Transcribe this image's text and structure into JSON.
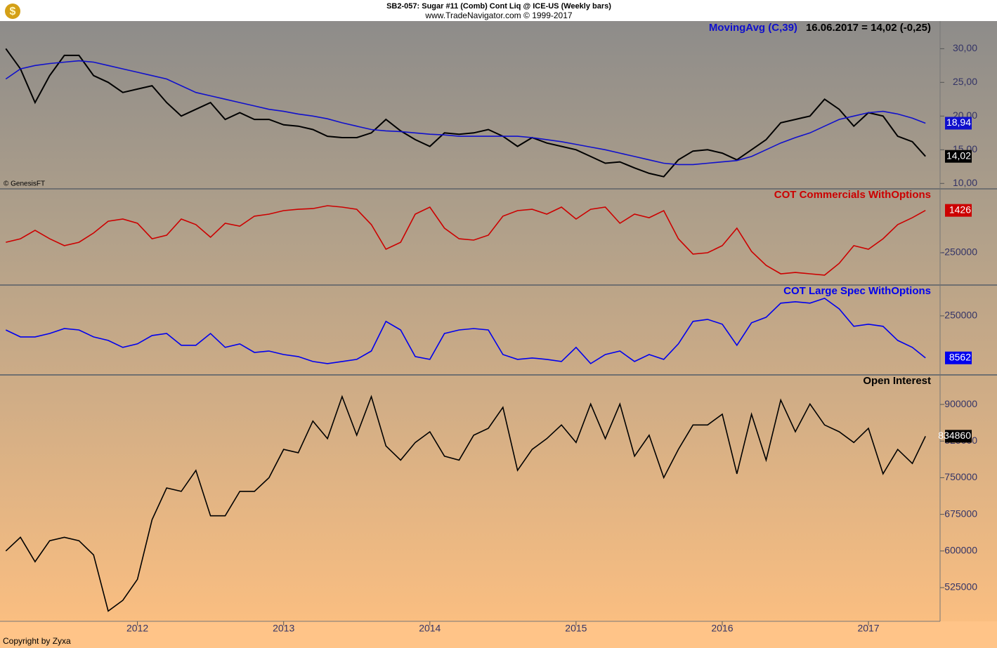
{
  "header": {
    "title": "SB2-057:  Sugar #11 (Comb) Cont Liq @ ICE-US  (Weekly bars)",
    "subtitle": "www.TradeNavigator.com © 1999-2017",
    "source": "© GenesisFT",
    "copyright": "Copyright by Zyxa"
  },
  "x_axis": {
    "xlim": [
      2011.06,
      2017.49
    ],
    "xticks": [
      2012,
      2013,
      2014,
      2015,
      2016,
      2017
    ],
    "x": [
      2011.1,
      2011.2,
      2011.3,
      2011.4,
      2011.5,
      2011.6,
      2011.7,
      2011.8,
      2011.9,
      2012.0,
      2012.1,
      2012.2,
      2012.3,
      2012.4,
      2012.5,
      2012.6,
      2012.7,
      2012.8,
      2012.9,
      2013.0,
      2013.1,
      2013.2,
      2013.3,
      2013.4,
      2013.5,
      2013.6,
      2013.7,
      2013.8,
      2013.9,
      2014.0,
      2014.1,
      2014.2,
      2014.3,
      2014.4,
      2014.5,
      2014.6,
      2014.7,
      2014.8,
      2014.9,
      2015.0,
      2015.1,
      2015.2,
      2015.3,
      2015.4,
      2015.5,
      2015.6,
      2015.7,
      2015.8,
      2015.9,
      2016.0,
      2016.1,
      2016.2,
      2016.3,
      2016.4,
      2016.5,
      2016.6,
      2016.7,
      2016.8,
      2016.9,
      2017.0,
      2017.1,
      2017.2,
      2017.3,
      2017.39
    ]
  },
  "chart_data": [
    {
      "type": "line",
      "info": "16.06.2017 = 14,02 (-0,25)",
      "ylim": [
        9.3,
        34.1
      ],
      "yticks": [
        {
          "value": 30,
          "label": "30,00"
        },
        {
          "value": 25,
          "label": "25,00"
        },
        {
          "value": 20,
          "label": "20,00"
        },
        {
          "value": 15,
          "label": "15,00"
        },
        {
          "value": 10,
          "label": "10,00"
        }
      ],
      "series": [
        {
          "name": null,
          "color": "#000000",
          "values": [
            30,
            27,
            22,
            26,
            29,
            29,
            26,
            25,
            23.5,
            24,
            24.5,
            22,
            20,
            21,
            22,
            19.5,
            20.5,
            19.5,
            19.5,
            18.7,
            18.5,
            18,
            17,
            16.8,
            16.8,
            17.5,
            19.5,
            17.8,
            16.5,
            15.5,
            17.5,
            17.3,
            17.5,
            18,
            17,
            15.5,
            16.8,
            16,
            15.5,
            15,
            14,
            13,
            13.2,
            12.3,
            11.5,
            11,
            13.5,
            14.8,
            15,
            14.5,
            13.5,
            15,
            16.5,
            19,
            19.5,
            20,
            22.5,
            21,
            18.5,
            20.5,
            20,
            17,
            16.2,
            14.02
          ],
          "value_labels": [
            null,
            null,
            null,
            null,
            null,
            null,
            null,
            null,
            null,
            null,
            null,
            null,
            null,
            null,
            null,
            null,
            null,
            null,
            null,
            null,
            null,
            null,
            null,
            null,
            null,
            null,
            null,
            null,
            null,
            null,
            null,
            null,
            null,
            null,
            null,
            null,
            null,
            null,
            null,
            null,
            null,
            null,
            null,
            null,
            null,
            null,
            null,
            null,
            null,
            null,
            null,
            null,
            null,
            null,
            null,
            null,
            null,
            null,
            null,
            null,
            null,
            null,
            null,
            "14,02"
          ]
        },
        {
          "name": "MovingAvg (C,39)",
          "color": "#1010cc",
          "values": [
            25.5,
            27,
            27.5,
            27.8,
            28,
            28.2,
            28,
            27.5,
            27,
            26.5,
            26,
            25.5,
            24.5,
            23.5,
            23,
            22.5,
            22,
            21.5,
            21,
            20.7,
            20.3,
            20,
            19.6,
            19,
            18.5,
            18,
            17.8,
            17.7,
            17.5,
            17.3,
            17.2,
            17,
            17,
            17,
            17,
            17,
            16.8,
            16.5,
            16.2,
            15.8,
            15.4,
            15,
            14.5,
            14,
            13.5,
            13,
            12.8,
            12.8,
            13,
            13.2,
            13.4,
            14,
            15,
            16,
            16.8,
            17.5,
            18.5,
            19.5,
            20,
            20.5,
            20.7,
            20.3,
            19.7,
            18.94
          ],
          "value_labels": [
            null,
            null,
            null,
            null,
            null,
            null,
            null,
            null,
            null,
            null,
            null,
            null,
            null,
            null,
            null,
            null,
            null,
            null,
            null,
            null,
            null,
            null,
            null,
            null,
            null,
            null,
            null,
            null,
            null,
            null,
            null,
            null,
            null,
            null,
            null,
            null,
            null,
            null,
            null,
            null,
            null,
            null,
            null,
            null,
            null,
            null,
            null,
            null,
            null,
            null,
            null,
            null,
            null,
            null,
            null,
            null,
            null,
            null,
            null,
            null,
            null,
            null,
            null,
            "18,94"
          ]
        }
      ]
    },
    {
      "type": "line",
      "ylim": [
        -437500,
        125000
      ],
      "yticks": [
        -250000
      ],
      "series": [
        {
          "name": "COT Commercials WithOptions",
          "color": "#cc0000",
          "values": [
            -188000,
            -167000,
            -117000,
            -167000,
            -208000,
            -188000,
            -133000,
            -63000,
            -50000,
            -75000,
            -167000,
            -146000,
            -50000,
            -83000,
            -158000,
            -75000,
            -92000,
            -33000,
            -21000,
            0,
            8000,
            12000,
            29000,
            21000,
            8000,
            -83000,
            -229000,
            -188000,
            -21000,
            21000,
            -104000,
            -167000,
            -175000,
            -146000,
            -33000,
            0,
            8000,
            -21000,
            21000,
            -50000,
            8000,
            21000,
            -75000,
            -21000,
            -42000,
            0,
            -167000,
            -258000,
            -250000,
            -208000,
            -104000,
            -242000,
            -325000,
            -375000,
            -367000,
            -375000,
            -383000,
            -313000,
            -208000,
            -229000,
            -167000,
            -83000,
            -42000,
            1426
          ]
        }
      ]
    },
    {
      "type": "line",
      "ylim": [
        -85000,
        423000
      ],
      "yticks": [
        250000
      ],
      "series": [
        {
          "name": "COT Large Spec WithOptions",
          "color": "#0000ee",
          "values": [
            169000,
            129000,
            129000,
            149000,
            177000,
            169000,
            129000,
            109000,
            69000,
            89000,
            137000,
            149000,
            81000,
            81000,
            149000,
            69000,
            89000,
            40000,
            48000,
            28000,
            16000,
            -12000,
            -24000,
            -12000,
            0,
            48000,
            218000,
            169000,
            16000,
            0,
            149000,
            169000,
            177000,
            169000,
            28000,
            0,
            8000,
            0,
            -12000,
            69000,
            -24000,
            28000,
            48000,
            -12000,
            28000,
            0,
            89000,
            218000,
            230000,
            202000,
            81000,
            210000,
            242000,
            323000,
            331000,
            323000,
            351000,
            290000,
            190000,
            202000,
            190000,
            109000,
            69000,
            8562
          ]
        }
      ]
    },
    {
      "type": "line",
      "ylim": [
        456000,
        959000
      ],
      "yticks": [
        900000,
        825000,
        750000,
        675000,
        600000,
        525000
      ],
      "series": [
        {
          "name": "Open Interest",
          "color": "#000000",
          "values": [
            600000,
            628000,
            578000,
            621000,
            628000,
            621000,
            592000,
            477000,
            499000,
            542000,
            664000,
            729000,
            722000,
            765000,
            672000,
            672000,
            722000,
            722000,
            750000,
            808000,
            801000,
            866000,
            830000,
            916000,
            837000,
            916000,
            815000,
            786000,
            822000,
            844000,
            794000,
            786000,
            837000,
            851000,
            894000,
            765000,
            808000,
            830000,
            858000,
            822000,
            901000,
            830000,
            901000,
            794000,
            837000,
            750000,
            808000,
            858000,
            858000,
            880000,
            758000,
            880000,
            786000,
            909000,
            844000,
            901000,
            858000,
            844000,
            822000,
            851000,
            758000,
            808000,
            779000,
            834860
          ]
        }
      ]
    }
  ]
}
